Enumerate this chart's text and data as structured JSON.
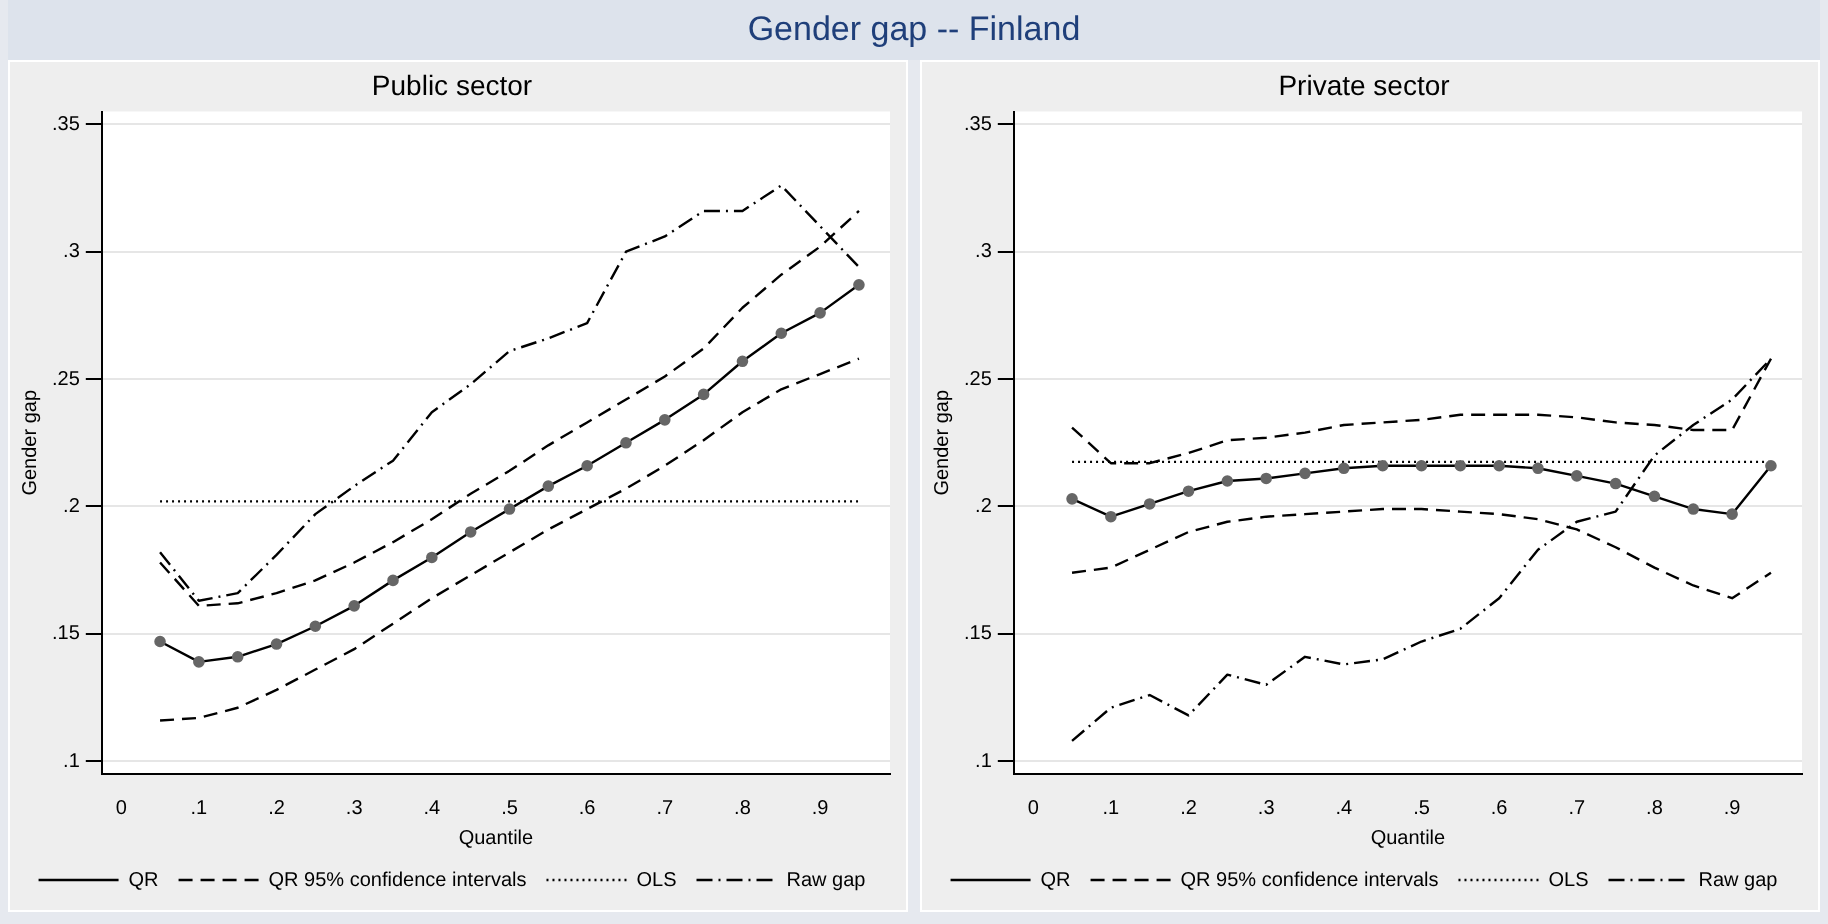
{
  "chart_data": [
    {
      "type": "line",
      "title": "Public sector",
      "xlabel": "Quantile",
      "ylabel": "Gender gap",
      "annotations": [
        "Gender gap -- Finland"
      ],
      "x": [
        0.05,
        0.1,
        0.15,
        0.2,
        0.25,
        0.3,
        0.35,
        0.4,
        0.45,
        0.5,
        0.55,
        0.6,
        0.65,
        0.7,
        0.75,
        0.8,
        0.85,
        0.9,
        0.95
      ],
      "series": [
        {
          "name": "QR",
          "color": "#000000",
          "marker": "circle",
          "line_style": "solid",
          "values": [
            0.147,
            0.139,
            0.141,
            0.146,
            0.153,
            0.161,
            0.171,
            0.18,
            0.19,
            0.199,
            0.208,
            0.216,
            0.225,
            0.234,
            0.244,
            0.257,
            0.268,
            0.276,
            0.287
          ]
        },
        {
          "name": "QR 95% confidence intervals",
          "color": "#000000",
          "marker": "none",
          "line_style": "dashed",
          "values": [
            0.178,
            0.161,
            0.162,
            0.166,
            0.171,
            0.178,
            0.186,
            0.195,
            0.205,
            0.214,
            0.224,
            0.233,
            0.242,
            0.251,
            0.262,
            0.278,
            0.291,
            0.302,
            0.316
          ]
        },
        {
          "color": "#000000",
          "marker": "none",
          "line_style": "dashed",
          "values": [
            0.116,
            0.117,
            0.121,
            0.128,
            0.136,
            0.144,
            0.154,
            0.164,
            0.173,
            0.182,
            0.191,
            0.199,
            0.207,
            0.216,
            0.226,
            0.237,
            0.246,
            0.252,
            0.258
          ]
        },
        {
          "name": "OLS",
          "color": "#000000",
          "marker": "none",
          "line_style": "dotted",
          "values": [
            0.202,
            0.202,
            0.202,
            0.202,
            0.202,
            0.202,
            0.202,
            0.202,
            0.202,
            0.202,
            0.202,
            0.202,
            0.202,
            0.202,
            0.202,
            0.202,
            0.202,
            0.202,
            0.202
          ]
        },
        {
          "name": "Raw gap",
          "color": "#000000",
          "marker": "none",
          "line_style": "dashdot",
          "values": [
            0.182,
            0.163,
            0.166,
            0.181,
            0.197,
            0.208,
            0.218,
            0.237,
            0.248,
            0.261,
            0.266,
            0.272,
            0.3,
            0.306,
            0.316,
            0.316,
            0.326,
            0.31,
            0.294
          ]
        }
      ],
      "xlim": [
        -0.025,
        0.99
      ],
      "xticks": [
        0,
        {
          "value": 0.1,
          "label": ".1"
        },
        {
          "value": 0.2,
          "label": ".2"
        },
        {
          "value": 0.3,
          "label": ".3"
        },
        {
          "value": 0.4,
          "label": ".4"
        },
        {
          "value": 0.5,
          "label": ".5"
        },
        {
          "value": 0.6,
          "label": ".6"
        },
        {
          "value": 0.7,
          "label": ".7"
        },
        {
          "value": 0.8,
          "label": ".8"
        },
        {
          "value": 0.9,
          "label": ".9"
        }
      ],
      "ylim": [
        0.095,
        0.355
      ],
      "yticks": [
        {
          "value": 0.1,
          "label": ".1"
        },
        {
          "value": 0.15,
          "label": ".15"
        },
        {
          "value": 0.2,
          "label": ".2"
        },
        {
          "value": 0.25,
          "label": ".25"
        },
        {
          "value": 0.3,
          "label": ".3"
        },
        {
          "value": 0.35,
          "label": ".35"
        }
      ],
      "grid": "y",
      "legend": "bottom"
    },
    {
      "type": "line",
      "title": "Private sector",
      "xlabel": "Quantile",
      "ylabel": "Gender gap",
      "x": [
        0.05,
        0.1,
        0.15,
        0.2,
        0.25,
        0.3,
        0.35,
        0.4,
        0.45,
        0.5,
        0.55,
        0.6,
        0.65,
        0.7,
        0.75,
        0.8,
        0.85,
        0.9,
        0.95
      ],
      "series": [
        {
          "name": "QR",
          "color": "#000000",
          "marker": "circle",
          "line_style": "solid",
          "values": [
            0.203,
            0.196,
            0.201,
            0.206,
            0.21,
            0.211,
            0.213,
            0.215,
            0.216,
            0.216,
            0.216,
            0.216,
            0.215,
            0.212,
            0.209,
            0.204,
            0.199,
            0.197,
            0.216
          ]
        },
        {
          "name": "QR 95% confidence intervals",
          "color": "#000000",
          "marker": "none",
          "line_style": "dashed",
          "values": [
            0.231,
            0.217,
            0.217,
            0.221,
            0.226,
            0.227,
            0.229,
            0.232,
            0.233,
            0.234,
            0.236,
            0.236,
            0.236,
            0.235,
            0.233,
            0.232,
            0.23,
            0.23,
            0.258
          ]
        },
        {
          "color": "#000000",
          "marker": "none",
          "line_style": "dashed",
          "values": [
            0.174,
            0.176,
            0.183,
            0.19,
            0.194,
            0.196,
            0.197,
            0.198,
            0.199,
            0.199,
            0.198,
            0.197,
            0.195,
            0.191,
            0.184,
            0.176,
            0.169,
            0.164,
            0.174
          ]
        },
        {
          "name": "OLS",
          "color": "#000000",
          "marker": "none",
          "line_style": "dotted",
          "values": [
            0.2175,
            0.2175,
            0.2175,
            0.2175,
            0.2175,
            0.2175,
            0.2175,
            0.2175,
            0.2175,
            0.2175,
            0.2175,
            0.2175,
            0.2175,
            0.2175,
            0.2175,
            0.2175,
            0.2175,
            0.2175,
            0.2175
          ]
        },
        {
          "name": "Raw gap",
          "color": "#000000",
          "marker": "none",
          "line_style": "dashdot",
          "values": [
            0.108,
            0.121,
            0.126,
            0.118,
            0.134,
            0.13,
            0.141,
            0.138,
            0.14,
            0.147,
            0.152,
            0.164,
            0.183,
            0.194,
            0.198,
            0.22,
            0.232,
            0.242,
            0.258
          ]
        }
      ],
      "xlim": [
        -0.025,
        0.99
      ],
      "xticks": [
        0,
        {
          "value": 0.1,
          "label": ".1"
        },
        {
          "value": 0.2,
          "label": ".2"
        },
        {
          "value": 0.3,
          "label": ".3"
        },
        {
          "value": 0.4,
          "label": ".4"
        },
        {
          "value": 0.5,
          "label": ".5"
        },
        {
          "value": 0.6,
          "label": ".6"
        },
        {
          "value": 0.7,
          "label": ".7"
        },
        {
          "value": 0.8,
          "label": ".8"
        },
        {
          "value": 0.9,
          "label": ".9"
        }
      ],
      "ylim": [
        0.095,
        0.355
      ],
      "yticks": [
        {
          "value": 0.1,
          "label": ".1"
        },
        {
          "value": 0.15,
          "label": ".15"
        },
        {
          "value": 0.2,
          "label": ".2"
        },
        {
          "value": 0.25,
          "label": ".25"
        },
        {
          "value": 0.3,
          "label": ".3"
        },
        {
          "value": 0.35,
          "label": ".35"
        }
      ],
      "grid": "y",
      "legend": "bottom"
    }
  ]
}
